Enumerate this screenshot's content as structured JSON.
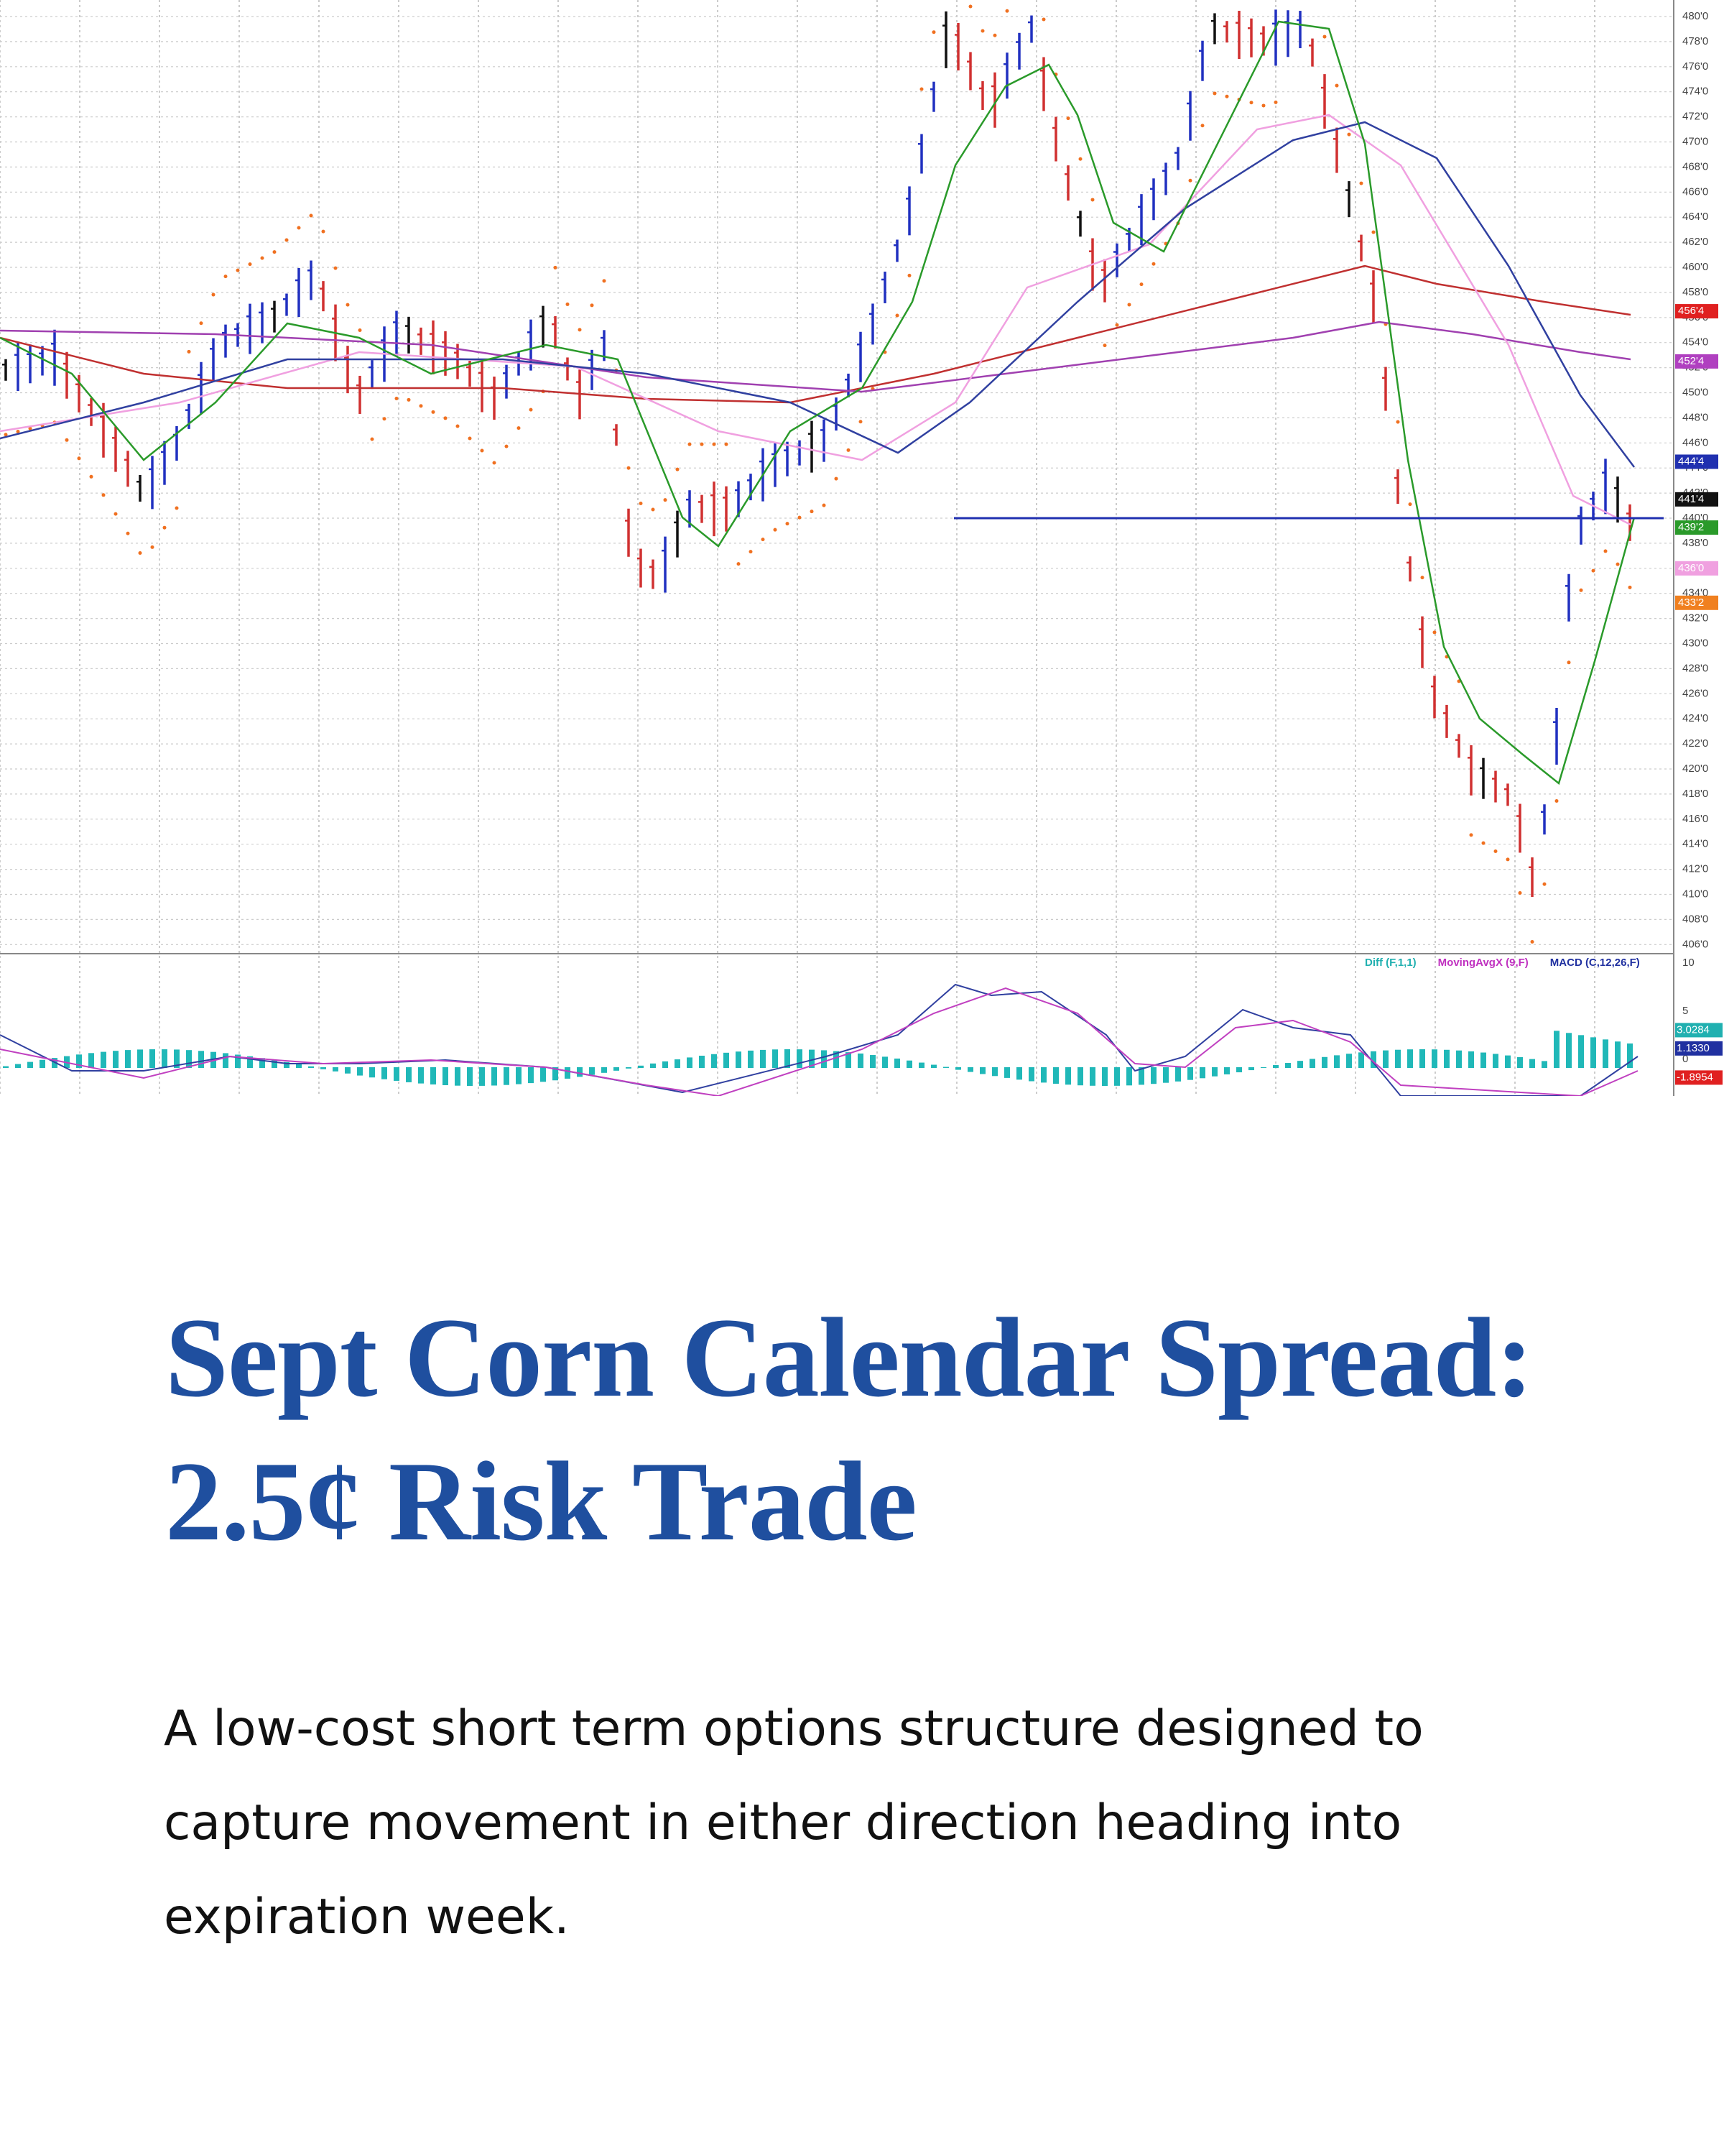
{
  "chart": {
    "price_ticks": [
      "480'0",
      "478'0",
      "476'0",
      "474'0",
      "472'0",
      "470'0",
      "468'0",
      "466'0",
      "464'0",
      "462'0",
      "460'0",
      "458'0",
      "456'0",
      "454'0",
      "452'0",
      "450'0",
      "448'0",
      "446'0",
      "444'0",
      "442'0",
      "440'0",
      "438'0",
      "436'0",
      "434'0",
      "432'0",
      "430'0",
      "428'0",
      "426'0",
      "424'0",
      "422'0",
      "420'0",
      "418'0",
      "416'0",
      "414'0",
      "412'0",
      "410'0",
      "408'0",
      "406'0"
    ],
    "price_flags": [
      {
        "label": "456'4",
        "color": "#e02020"
      },
      {
        "label": "452'4",
        "color": "#b040c0"
      },
      {
        "label": "444'4",
        "color": "#2030b0"
      },
      {
        "label": "441'4",
        "color": "#111111"
      },
      {
        "label": "439'2",
        "color": "#2a9a2a"
      },
      {
        "label": "436'0",
        "color": "#f0a0e0"
      },
      {
        "label": "433'2",
        "color": "#f08020"
      }
    ],
    "indicator_labels": [
      {
        "text": "Diff (F,1,1)",
        "color": "#20b0b0"
      },
      {
        "text": "MovingAvgX (9,F)",
        "color": "#c030c0"
      },
      {
        "text": "MACD (C,12,26,F)",
        "color": "#2030a0"
      }
    ],
    "macd_ticks": [
      10,
      5,
      0
    ],
    "macd_flags": [
      {
        "label": "3.0284",
        "color": "#20b0b0"
      },
      {
        "label": "1.1330",
        "color": "#2030a0"
      },
      {
        "label": "-1.8954",
        "color": "#e02020"
      }
    ]
  },
  "title": "Sept Corn Calendar Spread: 2.5¢ Risk Trade",
  "description": "A low-cost short term options structure designed to capture movement in either direction heading into expiration week."
}
